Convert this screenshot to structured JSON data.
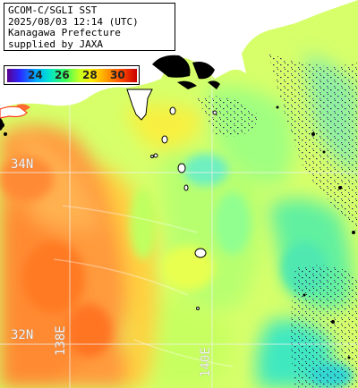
{
  "header": {
    "line1": "GCOM-C/SGLI SST",
    "line2": "2025/08/03 12:14 (UTC)",
    "line3": "Kanagawa Prefecture",
    "line4": "supplied by JAXA"
  },
  "legend": {
    "ticks": [
      "24",
      "26",
      "28",
      "30"
    ],
    "colors": [
      "#5a0090",
      "#2a2aff",
      "#00a8ff",
      "#00e0d0",
      "#3cff5a",
      "#c8ff20",
      "#ffe600",
      "#ffa000",
      "#ff4a00",
      "#c80000"
    ]
  },
  "grid": {
    "lat_labels": [
      "34N",
      "32N"
    ],
    "lon_labels": [
      "138E",
      "140E"
    ]
  },
  "colors": {
    "land": "#ffffff",
    "no_data": "#000000",
    "warm_water": "#ff9a3c",
    "mid_water": "#e8ff70",
    "cool_water": "#60f0a0"
  }
}
